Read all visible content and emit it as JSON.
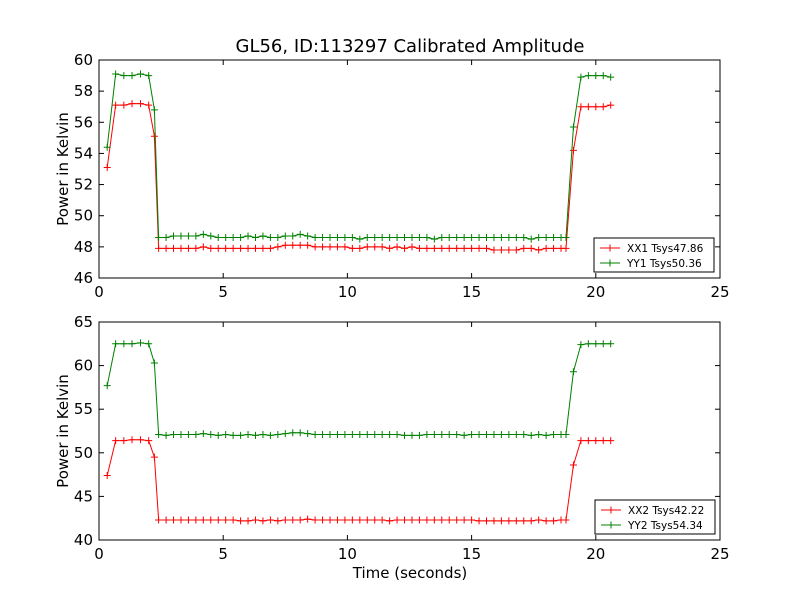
{
  "title": "GL56, ID:113297 Calibrated Amplitude",
  "xlabel": "Time (seconds)",
  "chart_data": [
    {
      "type": "line",
      "title": "GL56, ID:113297 Calibrated Amplitude",
      "xlabel": "",
      "ylabel": "Power in Kelvin",
      "xlim": [
        0,
        25
      ],
      "ylim": [
        46,
        60
      ],
      "xticks": [
        0,
        5,
        10,
        15,
        20,
        25
      ],
      "yticks": [
        46,
        48,
        50,
        52,
        54,
        56,
        58,
        60
      ],
      "grid": false,
      "legend_position": "lower-right",
      "x": [
        0.33,
        0.67,
        1.0,
        1.33,
        1.67,
        2.0,
        2.23,
        2.4,
        2.7,
        3.0,
        3.3,
        3.6,
        3.9,
        4.2,
        4.5,
        4.8,
        5.1,
        5.4,
        5.7,
        6.0,
        6.3,
        6.6,
        6.9,
        7.2,
        7.5,
        7.8,
        8.1,
        8.4,
        8.7,
        9.0,
        9.3,
        9.6,
        9.9,
        10.2,
        10.5,
        10.8,
        11.1,
        11.4,
        11.7,
        12.0,
        12.3,
        12.6,
        12.9,
        13.2,
        13.5,
        13.8,
        14.1,
        14.4,
        14.7,
        15.0,
        15.3,
        15.6,
        15.9,
        16.2,
        16.5,
        16.8,
        17.1,
        17.4,
        17.7,
        18.0,
        18.3,
        18.6,
        18.8,
        19.1,
        19.4,
        19.7,
        20.0,
        20.3,
        20.6
      ],
      "series": [
        {
          "name": "XX1 Tsys47.86",
          "color": "#ff0000",
          "values": [
            53.1,
            57.1,
            57.1,
            57.2,
            57.2,
            57.1,
            55.1,
            47.9,
            47.9,
            47.9,
            47.9,
            47.9,
            47.9,
            48.0,
            47.9,
            47.9,
            47.9,
            47.9,
            47.9,
            47.9,
            47.9,
            47.9,
            47.9,
            48.0,
            48.1,
            48.1,
            48.1,
            48.1,
            48.0,
            48.0,
            48.0,
            48.0,
            48.0,
            47.9,
            47.9,
            48.0,
            48.0,
            48.0,
            47.9,
            48.0,
            47.9,
            48.0,
            47.9,
            47.9,
            47.9,
            47.9,
            47.9,
            47.9,
            47.9,
            47.9,
            47.9,
            47.9,
            47.8,
            47.8,
            47.8,
            47.8,
            47.9,
            47.9,
            47.8,
            47.9,
            47.9,
            47.9,
            47.9,
            54.2,
            57.0,
            57.0,
            57.0,
            57.0,
            57.1
          ]
        },
        {
          "name": "YY1 Tsys50.36",
          "color": "#008000",
          "values": [
            54.4,
            59.1,
            59.0,
            59.0,
            59.1,
            59.0,
            56.8,
            48.6,
            48.6,
            48.7,
            48.7,
            48.7,
            48.7,
            48.8,
            48.7,
            48.6,
            48.6,
            48.6,
            48.6,
            48.7,
            48.6,
            48.7,
            48.6,
            48.6,
            48.7,
            48.7,
            48.8,
            48.7,
            48.6,
            48.6,
            48.6,
            48.6,
            48.6,
            48.6,
            48.5,
            48.6,
            48.6,
            48.6,
            48.6,
            48.6,
            48.6,
            48.6,
            48.6,
            48.6,
            48.5,
            48.6,
            48.6,
            48.6,
            48.6,
            48.6,
            48.6,
            48.6,
            48.6,
            48.6,
            48.6,
            48.6,
            48.6,
            48.5,
            48.6,
            48.6,
            48.6,
            48.6,
            48.6,
            55.7,
            58.9,
            59.0,
            59.0,
            59.0,
            58.9
          ]
        }
      ]
    },
    {
      "type": "line",
      "title": "",
      "xlabel": "Time (seconds)",
      "ylabel": "Power in Kelvin",
      "xlim": [
        0,
        25
      ],
      "ylim": [
        40,
        65
      ],
      "xticks": [
        0,
        5,
        10,
        15,
        20,
        25
      ],
      "yticks": [
        40,
        45,
        50,
        55,
        60,
        65
      ],
      "grid": false,
      "legend_position": "lower-right",
      "x": [
        0.33,
        0.67,
        1.0,
        1.33,
        1.67,
        2.0,
        2.23,
        2.4,
        2.7,
        3.0,
        3.3,
        3.6,
        3.9,
        4.2,
        4.5,
        4.8,
        5.1,
        5.4,
        5.7,
        6.0,
        6.3,
        6.6,
        6.9,
        7.2,
        7.5,
        7.8,
        8.1,
        8.4,
        8.7,
        9.0,
        9.3,
        9.6,
        9.9,
        10.2,
        10.5,
        10.8,
        11.1,
        11.4,
        11.7,
        12.0,
        12.3,
        12.6,
        12.9,
        13.2,
        13.5,
        13.8,
        14.1,
        14.4,
        14.7,
        15.0,
        15.3,
        15.6,
        15.9,
        16.2,
        16.5,
        16.8,
        17.1,
        17.4,
        17.7,
        18.0,
        18.3,
        18.6,
        18.8,
        19.1,
        19.4,
        19.7,
        20.0,
        20.3,
        20.6
      ],
      "series": [
        {
          "name": "XX2 Tsys42.22",
          "color": "#ff0000",
          "values": [
            47.4,
            51.4,
            51.4,
            51.5,
            51.5,
            51.4,
            49.5,
            42.3,
            42.3,
            42.3,
            42.3,
            42.3,
            42.3,
            42.3,
            42.3,
            42.3,
            42.3,
            42.3,
            42.2,
            42.2,
            42.3,
            42.2,
            42.3,
            42.2,
            42.3,
            42.3,
            42.3,
            42.4,
            42.3,
            42.3,
            42.3,
            42.3,
            42.3,
            42.3,
            42.3,
            42.3,
            42.3,
            42.3,
            42.2,
            42.3,
            42.3,
            42.3,
            42.3,
            42.3,
            42.3,
            42.3,
            42.3,
            42.3,
            42.3,
            42.3,
            42.2,
            42.2,
            42.2,
            42.2,
            42.2,
            42.2,
            42.2,
            42.2,
            42.3,
            42.2,
            42.2,
            42.3,
            42.3,
            48.6,
            51.4,
            51.4,
            51.4,
            51.4,
            51.4
          ]
        },
        {
          "name": "YY2 Tsys54.34",
          "color": "#008000",
          "values": [
            57.7,
            62.5,
            62.5,
            62.5,
            62.6,
            62.5,
            60.3,
            52.1,
            52.0,
            52.1,
            52.1,
            52.1,
            52.1,
            52.2,
            52.1,
            52.0,
            52.1,
            52.0,
            52.0,
            52.1,
            52.0,
            52.1,
            52.0,
            52.1,
            52.2,
            52.3,
            52.3,
            52.2,
            52.1,
            52.1,
            52.1,
            52.1,
            52.1,
            52.1,
            52.1,
            52.1,
            52.1,
            52.1,
            52.1,
            52.1,
            52.0,
            52.0,
            52.0,
            52.1,
            52.1,
            52.1,
            52.1,
            52.1,
            52.0,
            52.1,
            52.1,
            52.1,
            52.1,
            52.1,
            52.1,
            52.1,
            52.1,
            52.0,
            52.1,
            52.0,
            52.1,
            52.1,
            52.1,
            59.3,
            62.4,
            62.5,
            62.5,
            62.5,
            62.5
          ]
        }
      ]
    }
  ]
}
